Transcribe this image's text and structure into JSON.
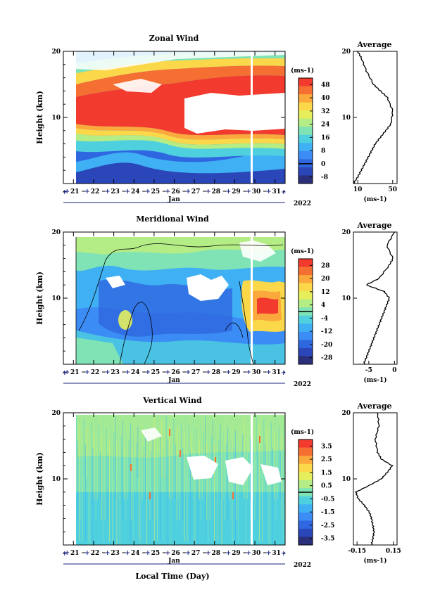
{
  "figure": {
    "xlabel": "Local Time (Day)",
    "month_label": "Jan",
    "year_label": "2022",
    "day_ticks": [
      "21",
      "22",
      "23",
      "24",
      "25",
      "26",
      "27",
      "28",
      "29",
      "30",
      "31"
    ]
  },
  "panels": [
    {
      "title": "Zonal Wind",
      "ylabel": "Height (km)",
      "yticks": [
        "20",
        "10"
      ],
      "unit_label": "(ms-1)",
      "colorbar_ticks": [
        "48",
        "40",
        "32",
        "24",
        "16",
        "8",
        "0",
        "-8"
      ],
      "profile_title": "Average",
      "profile_yticks": [
        "20",
        "10"
      ],
      "profile_xticks": [
        "10",
        "50"
      ],
      "profile_xlabel": "(ms-1)"
    },
    {
      "title": "Meridional Wind",
      "ylabel": "Height (km)",
      "yticks": [
        "20",
        "10"
      ],
      "unit_label": "(ms-1)",
      "colorbar_ticks": [
        "28",
        "20",
        "12",
        "4",
        "-4",
        "-12",
        "-20",
        "-28"
      ],
      "profile_title": "Average",
      "profile_yticks": [
        "20",
        "10"
      ],
      "profile_xticks": [
        "-5",
        "0"
      ],
      "profile_xlabel": "(ms-1)"
    },
    {
      "title": "Vertical Wind",
      "ylabel": "Height (km)",
      "yticks": [
        "20",
        "10"
      ],
      "unit_label": "(ms-1)",
      "colorbar_ticks": [
        "3.5",
        "2.5",
        "1.5",
        "0.5",
        "-0.5",
        "-1.5",
        "-2.5",
        "-3.5"
      ],
      "profile_title": "Average",
      "profile_yticks": [
        "20",
        "10"
      ],
      "profile_xticks": [
        "-0.15",
        "0.15"
      ],
      "profile_xlabel": "(ms-1)"
    }
  ],
  "chart_data": [
    {
      "type": "heatmap",
      "title": "Zonal Wind",
      "xlabel": "Local Time (Day)",
      "ylabel": "Height (km)",
      "x_range_day": [
        20.5,
        31.5
      ],
      "data_start_day": 21.2,
      "ylim_km": [
        0,
        20
      ],
      "colorbar_unit": "ms-1",
      "colorbar_range": [
        -12,
        52
      ],
      "features": {
        "jet_core_min_km": [
          8.0,
          14.0
        ],
        "max_speed_ms": 52
      },
      "colors": [
        "#2b2f7a",
        "#2a46b8",
        "#2f67e0",
        "#3b8df5",
        "#3fb0f4",
        "#4fd0df",
        "#7fe3b6",
        "#b4ec86",
        "#e6ee5c",
        "#fbd84a",
        "#fba83c",
        "#f66f32",
        "#f23a2e"
      ]
    },
    {
      "type": "line",
      "title": "Average",
      "series": [
        {
          "name": "Zonal Wind",
          "x": [
            5,
            10,
            14,
            18,
            22,
            26,
            30,
            36,
            42,
            48,
            50,
            44,
            36,
            28,
            20,
            14,
            10
          ],
          "y": [
            0,
            1,
            2,
            3,
            4,
            5,
            6,
            7,
            8,
            9,
            11,
            13,
            14,
            15,
            17,
            19,
            20
          ]
        }
      ],
      "xlim": [
        5,
        55
      ],
      "ylim": [
        0,
        20
      ],
      "xlabel": "(ms-1)"
    },
    {
      "type": "heatmap",
      "title": "Meridional Wind",
      "xlabel": "Local Time (Day)",
      "ylabel": "Height (km)",
      "x_range_day": [
        20.5,
        31.5
      ],
      "data_start_day": 21.2,
      "ylim_km": [
        0,
        20
      ],
      "colorbar_unit": "ms-1",
      "colorbar_range": [
        -32,
        32
      ],
      "colors": [
        "#2b2f7a",
        "#2a46b8",
        "#2f67e0",
        "#3b8df5",
        "#3fb0f4",
        "#4fd0df",
        "#7fe3b6",
        "#b4ec86",
        "#e6ee5c",
        "#fbd84a",
        "#fba83c",
        "#f66f32",
        "#f23a2e"
      ]
    },
    {
      "type": "line",
      "title": "Average",
      "series": [
        {
          "name": "Meridional Wind",
          "x": [
            -6,
            -5.5,
            -5,
            -4.5,
            -4,
            -3.5,
            -3,
            -2.5,
            -2,
            -1.5,
            -1,
            -2,
            -5.5,
            -3,
            -1,
            -0.3,
            -1.5,
            0
          ],
          "y": [
            0,
            1,
            2,
            3,
            4,
            5,
            6,
            7,
            8,
            9,
            10,
            11,
            12,
            13,
            15,
            16,
            18,
            20
          ]
        }
      ],
      "xlim": [
        -8,
        0.5
      ],
      "ylim": [
        0,
        20
      ],
      "xlabel": "(ms-1)"
    },
    {
      "type": "heatmap",
      "title": "Vertical Wind",
      "xlabel": "Local Time (Day)",
      "ylabel": "Height (km)",
      "x_range_day": [
        20.5,
        31.5
      ],
      "data_start_day": 21.2,
      "ylim_km": [
        0,
        20
      ],
      "colorbar_unit": "ms-1",
      "colorbar_range": [
        -4,
        4
      ],
      "colors": [
        "#2b2f7a",
        "#2a46b8",
        "#2f67e0",
        "#3b8df5",
        "#3fb0f4",
        "#4fd0df",
        "#7fe3b6",
        "#b4ec86",
        "#e6ee5c",
        "#fbd84a",
        "#fba83c",
        "#f66f32",
        "#f23a2e"
      ]
    },
    {
      "type": "line",
      "title": "Average",
      "series": [
        {
          "name": "Vertical Wind",
          "x": [
            -0.03,
            -0.02,
            -0.01,
            -0.02,
            -0.03,
            -0.05,
            -0.09,
            -0.14,
            -0.16,
            -0.05,
            0.05,
            0.1,
            0.14,
            0.05,
            0.02,
            0.0,
            0.03,
            0.02
          ],
          "y": [
            0,
            1,
            2,
            3,
            4,
            5,
            6,
            7,
            8,
            9,
            10,
            11,
            12,
            13,
            14,
            16,
            18,
            20
          ]
        }
      ],
      "xlim": [
        -0.18,
        0.18
      ],
      "ylim": [
        0,
        20
      ],
      "xlabel": "(ms-1)"
    }
  ]
}
